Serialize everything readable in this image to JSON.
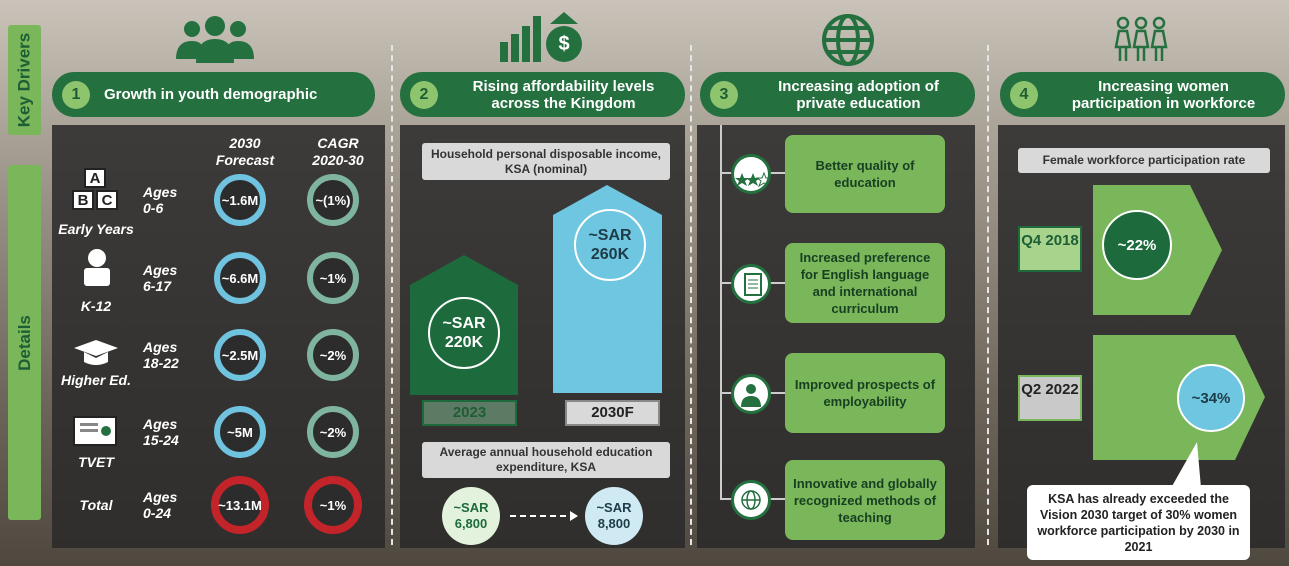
{
  "sidebar": {
    "key_drivers": "Key Drivers",
    "details": "Details"
  },
  "drivers": [
    {
      "number": "1",
      "title": "Growth in youth demographic",
      "columns": [
        "2030 Forecast",
        "CAGR 2020-30"
      ],
      "icon_letters": [
        "A",
        "B",
        "C"
      ],
      "rows": [
        {
          "segment": "Early Years",
          "ages": "Ages 0-6",
          "forecast": "~1.6M",
          "cagr": "~(1%)"
        },
        {
          "segment": "K-12",
          "ages": "Ages 6-17",
          "forecast": "~6.6M",
          "cagr": "~1%"
        },
        {
          "segment": "Higher Ed.",
          "ages": "Ages 18-22",
          "forecast": "~2.5M",
          "cagr": "~2%"
        },
        {
          "segment": "TVET",
          "ages": "Ages 15-24",
          "forecast": "~5M",
          "cagr": "~2%"
        },
        {
          "segment": "Total",
          "ages": "Ages 0-24",
          "forecast": "~13.1M",
          "cagr": "~1%"
        }
      ]
    },
    {
      "number": "2",
      "title": "Rising affordability levels across the Kingdom",
      "income_caption": "Household personal disposable income, KSA (nominal)",
      "income": [
        {
          "value": "~SAR 220K",
          "year": "2023"
        },
        {
          "value": "~SAR 260K",
          "year": "2030F"
        }
      ],
      "expenditure_caption": "Average annual household education expenditure, KSA",
      "expenditure": [
        "~SAR 6,800",
        "~SAR 8,800"
      ]
    },
    {
      "number": "3",
      "title": "Increasing adoption of private education",
      "items": [
        "Better quality of education",
        "Increased preference for English language and international curriculum",
        "Improved prospects of employability",
        "Innovative and globally recognized methods of teaching"
      ]
    },
    {
      "number": "4",
      "title": "Increasing women participation in workforce",
      "caption": "Female workforce participation rate",
      "periods": [
        {
          "period": "Q4 2018",
          "value": "~22%"
        },
        {
          "period": "Q2 2022",
          "value": "~34%"
        }
      ],
      "note": "KSA has already exceeded the Vision 2030 target of 30% women workforce participation by 2030 in 2021"
    }
  ]
}
